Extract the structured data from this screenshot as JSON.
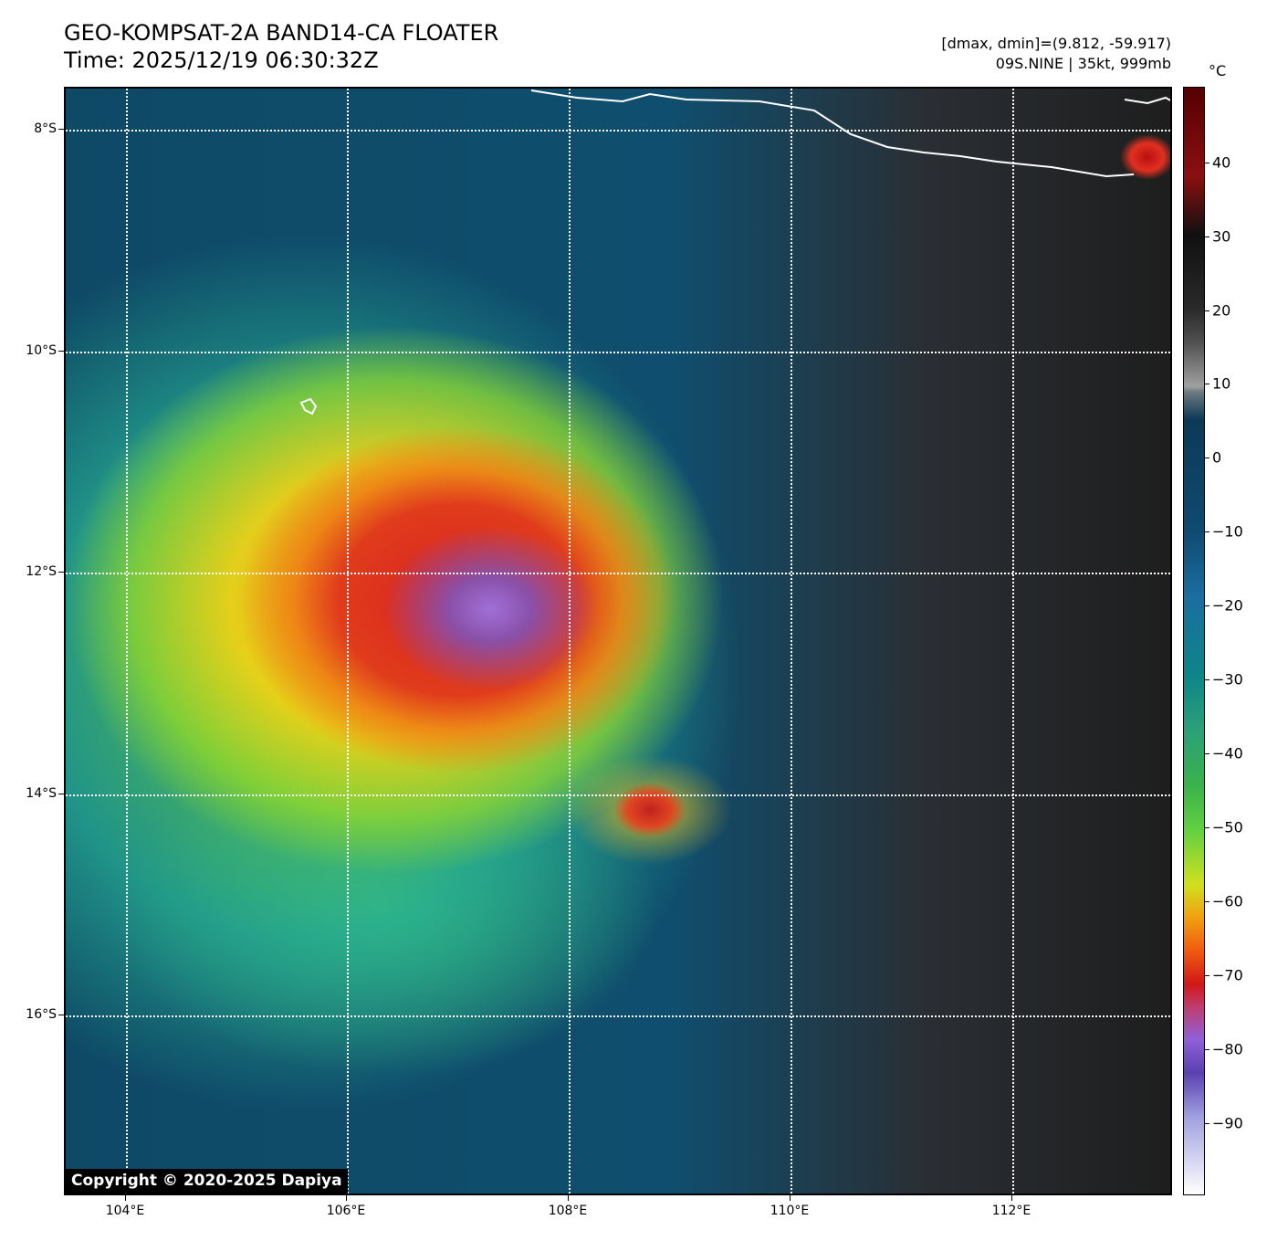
{
  "title": {
    "line1": "GEO-KOMPSAT-2A BAND14-CA FLOATER",
    "line2": "Time: 2025/12/19 06:30:32Z"
  },
  "meta": {
    "range": "[dmax, dmin]=(9.812, -59.917)",
    "storm": "09S.NINE | 35kt, 999mb"
  },
  "map": {
    "lat_ticks": [
      "8°S",
      "10°S",
      "12°S",
      "14°S",
      "16°S"
    ],
    "lon_ticks": [
      "104°E",
      "106°E",
      "108°E",
      "110°E",
      "112°E"
    ],
    "copyright": "Copyright © 2020-2025 Dapiya"
  },
  "colorbar": {
    "unit": "°C",
    "labels": [
      "40",
      "30",
      "20",
      "10",
      "0",
      "−10",
      "−20",
      "−30",
      "−40",
      "−50",
      "−60",
      "−70",
      "−80",
      "−90"
    ]
  },
  "colors": {
    "ocean": "#0f4e6e",
    "clear_land_dark": "#1e1e1e",
    "deep_convection": "#d82020",
    "coldest_tops": "#a070d8"
  }
}
